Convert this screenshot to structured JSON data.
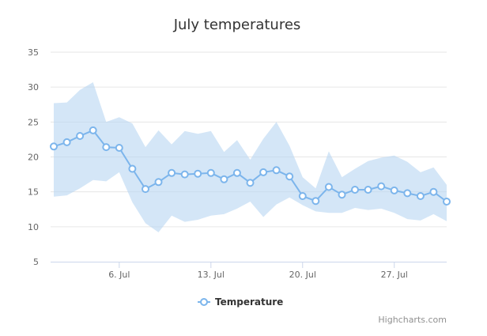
{
  "chart_data": {
    "type": "line",
    "title": "July temperatures",
    "xlabel": "",
    "ylabel": "",
    "ylim": [
      5,
      35
    ],
    "y_ticks": [
      5,
      10,
      15,
      20,
      25,
      30,
      35
    ],
    "x_ticks": [
      {
        "day": 6,
        "label": "6. Jul"
      },
      {
        "day": 13,
        "label": "13. Jul"
      },
      {
        "day": 20,
        "label": "20. Jul"
      },
      {
        "day": 27,
        "label": "27. Jul"
      }
    ],
    "x": [
      1,
      2,
      3,
      4,
      5,
      6,
      7,
      8,
      9,
      10,
      11,
      12,
      13,
      14,
      15,
      16,
      17,
      18,
      19,
      20,
      21,
      22,
      23,
      24,
      25,
      26,
      27,
      28,
      29,
      30,
      31
    ],
    "series": [
      {
        "name": "Temperature",
        "type": "line",
        "color": "#7cb5ec",
        "values": [
          21.5,
          22.1,
          23.0,
          23.8,
          21.4,
          21.3,
          18.3,
          15.4,
          16.4,
          17.7,
          17.5,
          17.6,
          17.7,
          16.8,
          17.7,
          16.3,
          17.8,
          18.1,
          17.2,
          14.4,
          13.7,
          15.7,
          14.6,
          15.3,
          15.3,
          15.8,
          15.2,
          14.8,
          14.4,
          15.0,
          13.6
        ]
      },
      {
        "name": "Range",
        "type": "arearange",
        "color": "#b8d5f2",
        "low": [
          14.3,
          14.5,
          15.5,
          16.7,
          16.5,
          17.8,
          13.5,
          10.5,
          9.2,
          11.6,
          10.7,
          11.0,
          11.6,
          11.8,
          12.6,
          13.6,
          11.4,
          13.2,
          14.2,
          13.1,
          12.2,
          12.0,
          12.0,
          12.7,
          12.4,
          12.6,
          12.0,
          11.1,
          10.9,
          11.8,
          10.8
        ],
        "high": [
          27.7,
          27.8,
          29.6,
          30.7,
          25.0,
          25.7,
          24.8,
          21.4,
          23.8,
          21.8,
          23.7,
          23.3,
          23.7,
          20.7,
          22.4,
          19.6,
          22.6,
          25.0,
          21.6,
          17.1,
          15.5,
          20.8,
          17.1,
          18.3,
          19.4,
          19.9,
          20.2,
          19.3,
          17.8,
          18.5,
          16.0
        ]
      }
    ],
    "legend": {
      "position": "bottom-center",
      "items": [
        "Temperature"
      ]
    }
  },
  "credits": "Highcharts.com"
}
